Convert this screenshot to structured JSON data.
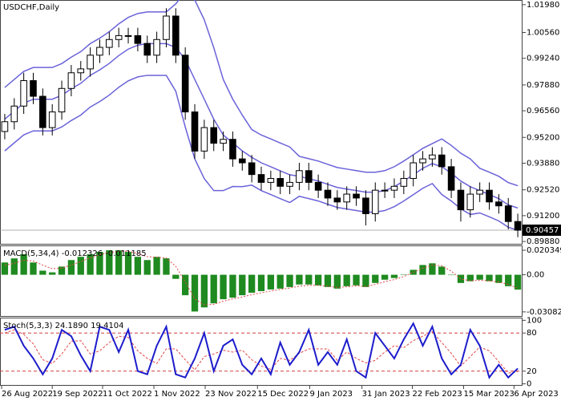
{
  "chart_data": [
    {
      "type": "candlestick",
      "title": "USDCHF,Daily",
      "open": [
        0.955,
        0.96,
        0.968,
        0.981,
        0.973,
        0.957,
        0.965,
        0.977,
        0.985,
        0.987,
        0.994,
        0.998,
        1.002,
        1.004,
        1.004,
        1.0,
        0.994,
        1.002,
        1.014,
        0.994,
        0.965,
        0.945,
        0.957,
        0.949,
        0.951,
        0.941,
        0.939,
        0.933,
        0.929,
        0.931,
        0.927,
        0.929,
        0.935,
        0.929,
        0.925,
        0.921,
        0.919,
        0.923,
        0.921,
        0.913,
        0.925,
        0.925,
        0.927,
        0.931,
        0.939,
        0.941,
        0.943,
        0.937,
        0.925,
        0.915,
        0.923,
        0.925,
        0.919,
        0.917,
        0.909
      ],
      "high": [
        0.964,
        0.972,
        0.985,
        0.985,
        0.977,
        0.969,
        0.981,
        0.989,
        0.991,
        0.998,
        1.002,
        1.006,
        1.008,
        1.008,
        1.008,
        1.004,
        1.006,
        1.018,
        1.018,
        0.998,
        0.969,
        0.961,
        0.961,
        0.955,
        0.955,
        0.945,
        0.943,
        0.937,
        0.935,
        0.935,
        0.933,
        0.939,
        0.939,
        0.933,
        0.929,
        0.925,
        0.927,
        0.927,
        0.925,
        0.929,
        0.929,
        0.931,
        0.935,
        0.943,
        0.945,
        0.947,
        0.947,
        0.941,
        0.929,
        0.927,
        0.929,
        0.929,
        0.923,
        0.921,
        0.913
      ],
      "low": [
        0.951,
        0.956,
        0.964,
        0.969,
        0.953,
        0.953,
        0.961,
        0.973,
        0.981,
        0.983,
        0.99,
        0.994,
        0.998,
        1.0,
        0.996,
        0.99,
        0.99,
        0.998,
        0.99,
        0.961,
        0.941,
        0.941,
        0.945,
        0.945,
        0.937,
        0.935,
        0.929,
        0.925,
        0.925,
        0.923,
        0.923,
        0.925,
        0.925,
        0.921,
        0.917,
        0.915,
        0.915,
        0.917,
        0.907,
        0.909,
        0.921,
        0.921,
        0.923,
        0.927,
        0.935,
        0.937,
        0.933,
        0.921,
        0.909,
        0.911,
        0.919,
        0.915,
        0.913,
        0.905,
        0.901
      ],
      "close": [
        0.96,
        0.968,
        0.981,
        0.973,
        0.957,
        0.965,
        0.977,
        0.985,
        0.987,
        0.994,
        0.998,
        1.002,
        1.004,
        1.004,
        1.0,
        0.994,
        1.002,
        1.014,
        0.994,
        0.965,
        0.945,
        0.957,
        0.949,
        0.951,
        0.941,
        0.939,
        0.933,
        0.929,
        0.931,
        0.927,
        0.929,
        0.935,
        0.929,
        0.925,
        0.921,
        0.919,
        0.923,
        0.921,
        0.913,
        0.925,
        0.925,
        0.927,
        0.931,
        0.939,
        0.941,
        0.943,
        0.937,
        0.925,
        0.915,
        0.923,
        0.925,
        0.919,
        0.917,
        0.909,
        0.90457
      ],
      "bands": {
        "color": "#6b63d9",
        "upper": [
          0.9775,
          0.9816,
          0.9857,
          0.9877,
          0.9877,
          0.9877,
          0.9897,
          0.993,
          0.9958,
          0.9999,
          1.0027,
          1.006,
          1.01,
          1.0133,
          1.0153,
          1.0161,
          1.0161,
          1.0161,
          1.0202,
          1.0263,
          1.0222,
          1.0121,
          0.9978,
          0.9816,
          0.9715,
          0.9634,
          0.956,
          0.9532,
          0.9512,
          0.9491,
          0.9471,
          0.9423,
          0.9411,
          0.9399,
          0.9382,
          0.9366,
          0.9358,
          0.935,
          0.9342,
          0.9342,
          0.935,
          0.937,
          0.9399,
          0.9431,
          0.9464,
          0.9488,
          0.9512,
          0.9479,
          0.9439,
          0.941,
          0.9362,
          0.9342,
          0.9321,
          0.9289,
          0.9273
        ],
        "middle": [
          0.9613,
          0.9654,
          0.9695,
          0.9715,
          0.9715,
          0.9715,
          0.9735,
          0.9768,
          0.9796,
          0.9837,
          0.9865,
          0.9898,
          0.9938,
          0.9971,
          0.9991,
          0.9999,
          0.9999,
          0.9999,
          0.9979,
          0.9918,
          0.9816,
          0.9715,
          0.9613,
          0.9532,
          0.9492,
          0.9451,
          0.9418,
          0.939,
          0.937,
          0.9349,
          0.9329,
          0.9321,
          0.9309,
          0.9297,
          0.928,
          0.9264,
          0.9256,
          0.9248,
          0.924,
          0.924,
          0.9248,
          0.9268,
          0.9297,
          0.9329,
          0.9362,
          0.9386,
          0.937,
          0.9337,
          0.9297,
          0.9268,
          0.9248,
          0.9228,
          0.9207,
          0.9175,
          0.9159
        ],
        "lower": [
          0.9451,
          0.9492,
          0.9533,
          0.9553,
          0.9553,
          0.9553,
          0.9573,
          0.9606,
          0.9634,
          0.9675,
          0.9703,
          0.9736,
          0.9776,
          0.9809,
          0.9829,
          0.9837,
          0.9837,
          0.9837,
          0.9756,
          0.9573,
          0.941,
          0.9309,
          0.9248,
          0.9248,
          0.9269,
          0.9268,
          0.9276,
          0.9248,
          0.9228,
          0.9207,
          0.9187,
          0.9219,
          0.9207,
          0.9195,
          0.9178,
          0.9162,
          0.9154,
          0.9146,
          0.9138,
          0.9138,
          0.9146,
          0.9166,
          0.9195,
          0.9227,
          0.926,
          0.9284,
          0.9228,
          0.9195,
          0.9155,
          0.9126,
          0.9134,
          0.9114,
          0.9093,
          0.9061,
          0.9045
        ]
      },
      "last_price": {
        "value": 0.90457,
        "label": "0.90457"
      },
      "xlim": [
        -0.5,
        54.5
      ],
      "ylim": [
        0.8972,
        1.0222
      ],
      "yticks": [
        {
          "value": 1.0198,
          "label": "1.01980"
        },
        {
          "value": 1.0056,
          "label": "1.00560"
        },
        {
          "value": 0.9924,
          "label": "0.99240"
        },
        {
          "value": 0.9788,
          "label": "0.97880"
        },
        {
          "value": 0.9656,
          "label": "0.96560"
        },
        {
          "value": 0.952,
          "label": "0.95200"
        },
        {
          "value": 0.9388,
          "label": "0.93880"
        },
        {
          "value": 0.9252,
          "label": "0.92520"
        },
        {
          "value": 0.912,
          "label": "0.91200"
        },
        {
          "value": 0.8988,
          "label": "0.89880"
        }
      ]
    },
    {
      "type": "macd",
      "title": "MACD(5,34,4) -0.012326 -0.011185",
      "histogram": {
        "color": "#1f8a1f",
        "values": [
          0.0102,
          0.0136,
          0.017,
          0.0102,
          0.0034,
          0.002,
          0.0068,
          0.0122,
          0.0149,
          0.017,
          0.019,
          0.0203,
          0.0203,
          0.019,
          0.0149,
          0.0122,
          0.0149,
          0.0136,
          -0.0034,
          -0.017,
          -0.0305,
          -0.0271,
          -0.0237,
          -0.0203,
          -0.019,
          -0.017,
          -0.0149,
          -0.0136,
          -0.0122,
          -0.0115,
          -0.0102,
          -0.0081,
          -0.0081,
          -0.0088,
          -0.0102,
          -0.0115,
          -0.0095,
          -0.0088,
          -0.0102,
          -0.0068,
          -0.0041,
          -0.0027,
          0.0003,
          0.0041,
          0.0081,
          0.0095,
          0.0068,
          -0.0003,
          -0.0068,
          -0.0054,
          -0.0041,
          -0.0054,
          -0.0068,
          -0.0095,
          -0.012326
        ]
      },
      "signal": {
        "color": "#e04848",
        "values": [
          0.008,
          0.0095,
          0.012,
          0.0115,
          0.008,
          0.005,
          0.0055,
          0.008,
          0.011,
          0.014,
          0.0165,
          0.0185,
          0.0195,
          0.0195,
          0.0175,
          0.015,
          0.0145,
          0.014,
          0.007,
          -0.006,
          -0.02,
          -0.025,
          -0.0245,
          -0.022,
          -0.02,
          -0.0185,
          -0.0165,
          -0.015,
          -0.0135,
          -0.0122,
          -0.011,
          -0.0095,
          -0.0088,
          -0.0088,
          -0.0095,
          -0.0105,
          -0.01,
          -0.0092,
          -0.0097,
          -0.008,
          -0.0058,
          -0.004,
          -0.0015,
          0.002,
          0.0055,
          0.008,
          0.0075,
          0.003,
          -0.0035,
          -0.005,
          -0.0045,
          -0.005,
          -0.006,
          -0.008,
          -0.011185
        ]
      },
      "xlim": [
        -0.5,
        54.5
      ],
      "ylim": [
        -0.0349,
        0.0237
      ],
      "yticks": [
        0.020349,
        {
          "value": 0,
          "label": "0.00"
        },
        -0.030821
      ]
    },
    {
      "type": "stochastic",
      "title": "Stoch(5,3,3) 24.1890 19.4104",
      "main": {
        "color": "#1c1ccc",
        "values": [
          85,
          90,
          60,
          40,
          15,
          40,
          85,
          75,
          45,
          20,
          90,
          85,
          50,
          85,
          20,
          15,
          60,
          90,
          15,
          10,
          40,
          80,
          20,
          60,
          70,
          30,
          15,
          40,
          15,
          65,
          30,
          50,
          85,
          30,
          50,
          30,
          70,
          20,
          10,
          80,
          60,
          40,
          70,
          95,
          60,
          90,
          40,
          15,
          30,
          85,
          60,
          10,
          30,
          10,
          24.189
        ]
      },
      "signal": {
        "color": "#e04848",
        "values": [
          80,
          85,
          78,
          63,
          38,
          32,
          47,
          67,
          68,
          47,
          52,
          65,
          75,
          73,
          52,
          40,
          32,
          55,
          55,
          38,
          22,
          43,
          47,
          53,
          50,
          53,
          38,
          28,
          23,
          40,
          37,
          48,
          55,
          55,
          55,
          37,
          50,
          40,
          33,
          37,
          50,
          60,
          57,
          68,
          75,
          82,
          65,
          48,
          28,
          43,
          58,
          52,
          35,
          17,
          19.4104
        ]
      },
      "levels": {
        "color": "#d04040",
        "values": [
          80,
          20
        ]
      },
      "xlim": [
        -0.5,
        54.5
      ],
      "ylim": [
        -3,
        103
      ],
      "yticks": [
        100,
        80,
        20,
        0
      ],
      "xticks": [
        {
          "value": -0.33,
          "label": "26 Aug 2022"
        },
        {
          "value": 5.0,
          "label": "19 Sep 2022"
        },
        {
          "value": 10.3,
          "label": "11 Oct 2022"
        },
        {
          "value": 15.7,
          "label": "1 Nov 2022"
        },
        {
          "value": 21.1,
          "label": "23 Nov 2022"
        },
        {
          "value": 26.6,
          "label": "15 Dec 2022"
        },
        {
          "value": 32.1,
          "label": "9 Jan 2023"
        },
        {
          "value": 37.6,
          "label": "31 Jan 2023"
        },
        {
          "value": 42.9,
          "label": "22 Feb 2023"
        },
        {
          "value": 48.3,
          "label": "15 Mar 2023"
        },
        {
          "value": 53.6,
          "label": "6 Apr 2023"
        }
      ]
    }
  ]
}
